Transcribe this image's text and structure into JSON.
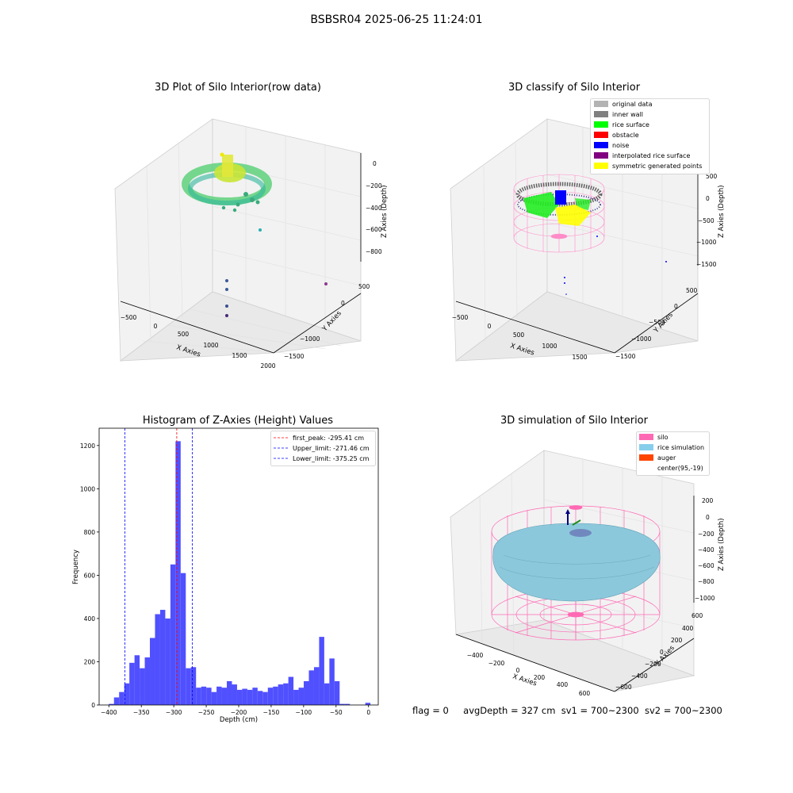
{
  "suptitle": "BSBSR04 2025-06-25 11:24:01",
  "footer": {
    "flag": "flag = 0",
    "avg_depth": "avgDepth = 327 cm",
    "sv1": "sv1 = 700~2300",
    "sv2": "sv2 = 700~2300"
  },
  "plot_raw": {
    "title": "3D Plot of Silo Interior(row data)",
    "xlabel": "X Axies",
    "ylabel": "Y Axies",
    "zlabel": "Z Axies (Depth)",
    "xticks": [
      "−500",
      "0",
      "500",
      "1000",
      "1500",
      "2000"
    ],
    "yticks": [
      "500",
      "0",
      "−1000",
      "−1000",
      "−1500"
    ],
    "zticks": [
      "0",
      "−200",
      "−400",
      "−600",
      "−800"
    ]
  },
  "plot_classify": {
    "title": "3D classify of Silo Interior",
    "xlabel": "X Axies",
    "ylabel": "Y Axies",
    "zlabel": "Z Axies (Depth)",
    "xticks": [
      "−500",
      "0",
      "500",
      "1000",
      "1500"
    ],
    "yticks": [
      "500",
      "0",
      "−500",
      "−1000",
      "−1500"
    ],
    "zticks": [
      "500",
      "0",
      "−500",
      "−1000",
      "−1500"
    ],
    "legend": [
      {
        "label": "original data",
        "color": "#b3b3b3"
      },
      {
        "label": "inner wall",
        "color": "#808080"
      },
      {
        "label": "rice surface",
        "color": "#00ff00"
      },
      {
        "label": "obstacle",
        "color": "#ff0000"
      },
      {
        "label": "noise",
        "color": "#0000ff"
      },
      {
        "label": "interpolated rice surface",
        "color": "#800080"
      },
      {
        "label": "symmetric generated points",
        "color": "#ffff00"
      }
    ]
  },
  "plot_sim": {
    "title": "3D simulation of Silo Interior",
    "xlabel": "X Axies",
    "ylabel": "Y Axies",
    "zlabel": "Z Axies (Depth)",
    "xticks": [
      "−400",
      "−200",
      "0",
      "200",
      "400",
      "600"
    ],
    "yticks": [
      "600",
      "400",
      "200",
      "0",
      "−200",
      "−400",
      "−600"
    ],
    "zticks": [
      "200",
      "0",
      "−200",
      "−400",
      "−600",
      "−800",
      "−1000"
    ],
    "legend": [
      {
        "label": "silo",
        "color": "#ff69b4"
      },
      {
        "label": "rice simulation",
        "color": "#87ceeb"
      },
      {
        "label": "auger",
        "color": "#ff4500"
      },
      {
        "label": "center(95,-19)",
        "color": ""
      }
    ]
  },
  "chart_data": {
    "type": "bar",
    "title": "Histogram of Z-Axies (Height) Values",
    "xlabel": "Depth (cm)",
    "ylabel": "Frequency",
    "xlim": [
      -415,
      15
    ],
    "ylim": [
      0,
      1280
    ],
    "xticks": [
      -400,
      -350,
      -300,
      -250,
      -200,
      -150,
      -100,
      -50,
      0
    ],
    "yticks": [
      0,
      200,
      400,
      600,
      800,
      1000,
      1200
    ],
    "bin_width": 7.9,
    "bin_starts": [
      -400.0,
      -392.1,
      -384.2,
      -376.3,
      -368.4,
      -360.5,
      -352.6,
      -344.7,
      -336.8,
      -328.9,
      -321.0,
      -313.1,
      -305.2,
      -297.3,
      -289.4,
      -281.5,
      -273.6,
      -265.7,
      -257.8,
      -249.9,
      -242.0,
      -234.1,
      -226.2,
      -218.3,
      -210.4,
      -202.5,
      -194.6,
      -186.7,
      -178.8,
      -170.9,
      -163.0,
      -155.1,
      -147.2,
      -139.3,
      -131.4,
      -123.5,
      -115.6,
      -107.7,
      -99.8,
      -91.9,
      -84.0,
      -76.1,
      -68.2,
      -60.3,
      -52.4,
      -44.5,
      -36.6,
      -28.7,
      -20.8,
      -12.9,
      -5.0
    ],
    "values": [
      5,
      35,
      60,
      100,
      195,
      230,
      170,
      220,
      310,
      420,
      440,
      400,
      650,
      1220,
      610,
      170,
      175,
      80,
      85,
      80,
      60,
      85,
      80,
      110,
      95,
      70,
      75,
      70,
      80,
      65,
      60,
      80,
      85,
      95,
      100,
      130,
      70,
      80,
      110,
      160,
      175,
      315,
      100,
      215,
      110,
      5,
      5,
      0,
      0,
      0,
      10
    ],
    "lines": [
      {
        "label": "first_peak: -295.41 cm",
        "x": -295.41,
        "color": "#ff0000"
      },
      {
        "label": "Upper_limit: -271.46 cm",
        "x": -271.46,
        "color": "#0000ff"
      },
      {
        "label": "Lower_limit: -375.25 cm",
        "x": -375.25,
        "color": "#0000ff"
      }
    ],
    "bar_color": "#5050ff"
  }
}
